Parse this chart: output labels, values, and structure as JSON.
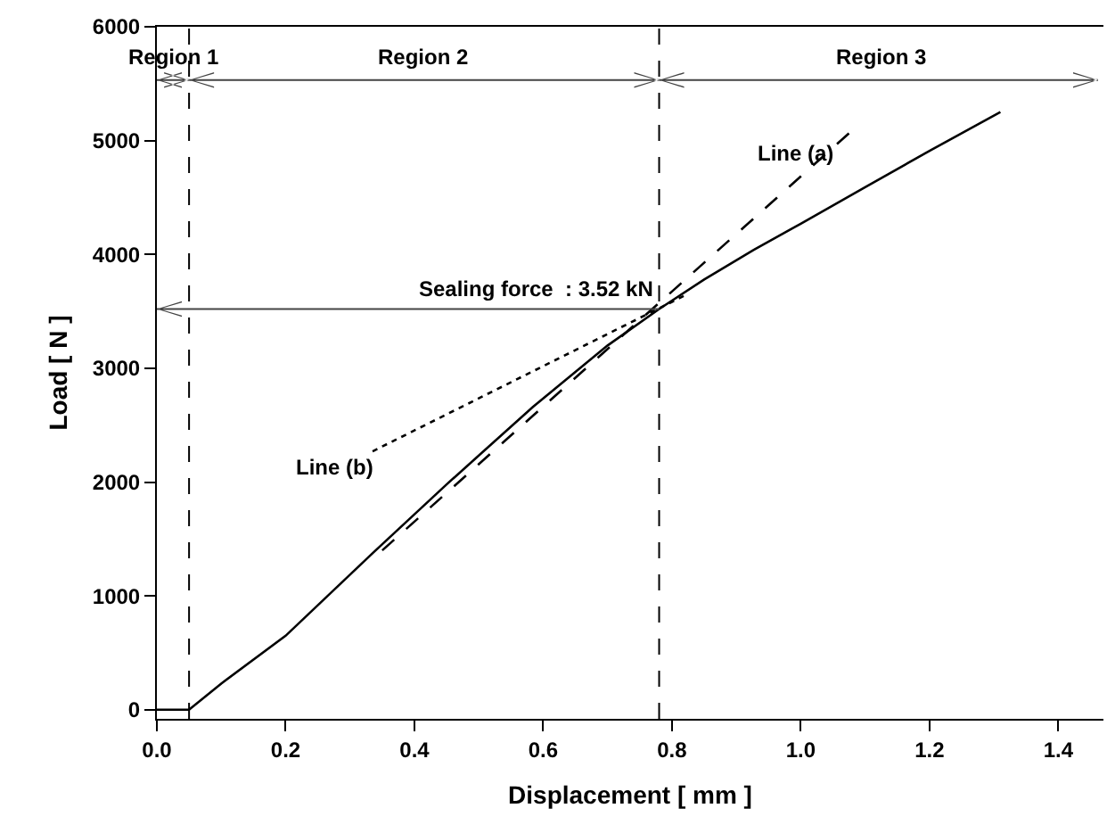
{
  "chart_data": {
    "type": "line",
    "xlabel": "Displacement [ mm ]",
    "ylabel": "Load [ N ]",
    "series": [
      {
        "color": "#000000",
        "line_style": "solid",
        "x": [
          0,
          0.05,
          0.1,
          0.2,
          0.336,
          0.45,
          0.584,
          0.7,
          0.78,
          0.85,
          0.927,
          1.0,
          1.1,
          1.2,
          1.31
        ],
        "values": [
          0,
          0,
          230,
          650,
          1380,
          1980,
          2660,
          3200,
          3520,
          3780,
          4040,
          4270,
          4590,
          4910,
          5250
        ]
      },
      {
        "name": "Line (a)",
        "color": "#000000",
        "line_style": "dashed",
        "x": [
          0.35,
          1.08
        ],
        "values": [
          1400,
          5090
        ]
      },
      {
        "name": "Line (b)",
        "color": "#000000",
        "line_style": "dotted",
        "x": [
          0.335,
          0.82
        ],
        "values": [
          2270,
          3640
        ]
      }
    ],
    "ref_lines": [
      {
        "axis": "x",
        "value": 0.05,
        "line_style": "dashed",
        "color": "#000000"
      },
      {
        "axis": "x",
        "value": 0.78,
        "line_style": "dashed",
        "color": "#000000"
      }
    ],
    "annotations": [
      "Region 1",
      "Region 2",
      "Region 3",
      {
        "text": "Sealing force  : 3.52 kN",
        "x": 0.78,
        "y": 3520
      }
    ],
    "xlim": [
      0,
      1.47
    ],
    "xticks": [
      {
        "value": 0,
        "label": "0.0"
      },
      0.2,
      0.4,
      0.6,
      0.8,
      {
        "value": 1,
        "label": "1.0"
      },
      1.2,
      1.4
    ],
    "ylim": [
      -80,
      6000
    ],
    "yticks": [
      0,
      1000,
      2000,
      3000,
      4000,
      5000,
      6000
    ],
    "grid": false,
    "legend": false,
    "marker": "none"
  }
}
